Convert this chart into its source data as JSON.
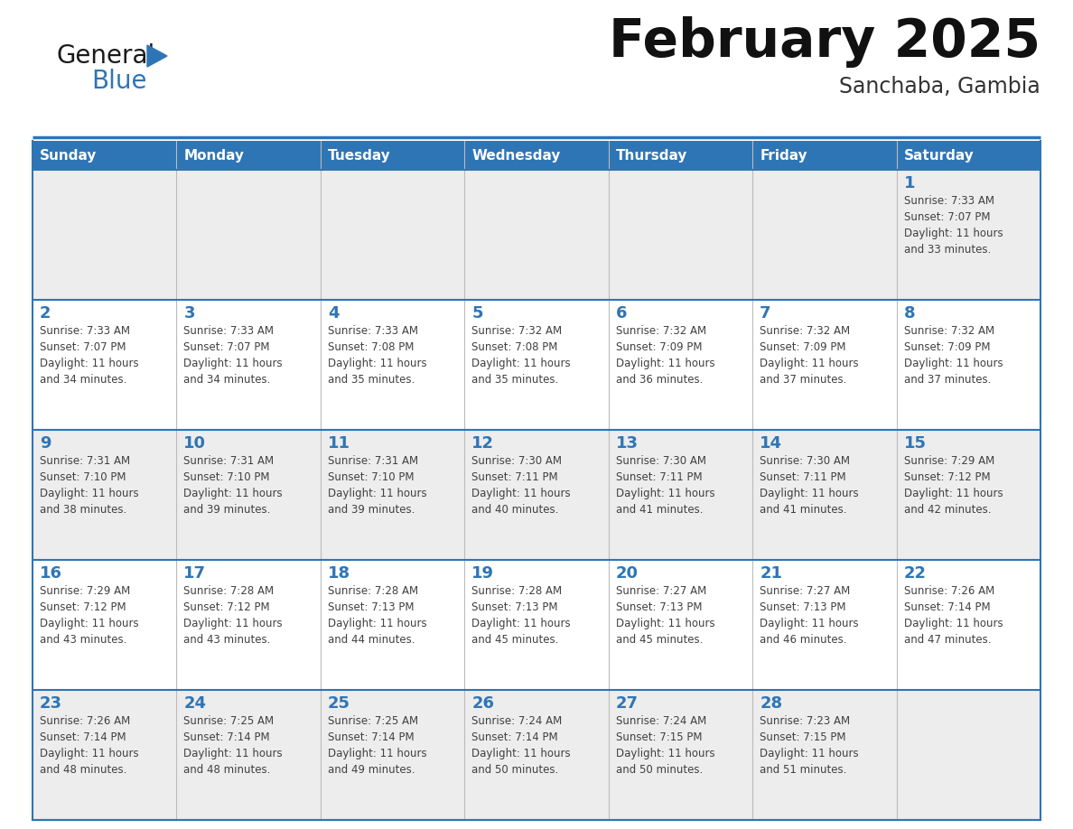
{
  "title": "February 2025",
  "subtitle": "Sanchaba, Gambia",
  "days_of_week": [
    "Sunday",
    "Monday",
    "Tuesday",
    "Wednesday",
    "Thursday",
    "Friday",
    "Saturday"
  ],
  "header_bg": "#2E75B6",
  "header_text": "#FFFFFF",
  "row_bg_even": "#EDEDED",
  "row_bg_odd": "#FFFFFF",
  "separator_color": "#2E75B6",
  "day_num_color": "#2E75B6",
  "cell_text_color": "#404040",
  "title_color": "#111111",
  "subtitle_color": "#333333",
  "logo_black": "#1a1a1a",
  "logo_blue": "#2E75B6",
  "calendar": [
    [
      null,
      null,
      null,
      null,
      null,
      null,
      {
        "day": 1,
        "sunrise": "7:33 AM",
        "sunset": "7:07 PM",
        "daylight": "11 hours and 33 minutes."
      }
    ],
    [
      {
        "day": 2,
        "sunrise": "7:33 AM",
        "sunset": "7:07 PM",
        "daylight": "11 hours and 34 minutes."
      },
      {
        "day": 3,
        "sunrise": "7:33 AM",
        "sunset": "7:07 PM",
        "daylight": "11 hours and 34 minutes."
      },
      {
        "day": 4,
        "sunrise": "7:33 AM",
        "sunset": "7:08 PM",
        "daylight": "11 hours and 35 minutes."
      },
      {
        "day": 5,
        "sunrise": "7:32 AM",
        "sunset": "7:08 PM",
        "daylight": "11 hours and 35 minutes."
      },
      {
        "day": 6,
        "sunrise": "7:32 AM",
        "sunset": "7:09 PM",
        "daylight": "11 hours and 36 minutes."
      },
      {
        "day": 7,
        "sunrise": "7:32 AM",
        "sunset": "7:09 PM",
        "daylight": "11 hours and 37 minutes."
      },
      {
        "day": 8,
        "sunrise": "7:32 AM",
        "sunset": "7:09 PM",
        "daylight": "11 hours and 37 minutes."
      }
    ],
    [
      {
        "day": 9,
        "sunrise": "7:31 AM",
        "sunset": "7:10 PM",
        "daylight": "11 hours and 38 minutes."
      },
      {
        "day": 10,
        "sunrise": "7:31 AM",
        "sunset": "7:10 PM",
        "daylight": "11 hours and 39 minutes."
      },
      {
        "day": 11,
        "sunrise": "7:31 AM",
        "sunset": "7:10 PM",
        "daylight": "11 hours and 39 minutes."
      },
      {
        "day": 12,
        "sunrise": "7:30 AM",
        "sunset": "7:11 PM",
        "daylight": "11 hours and 40 minutes."
      },
      {
        "day": 13,
        "sunrise": "7:30 AM",
        "sunset": "7:11 PM",
        "daylight": "11 hours and 41 minutes."
      },
      {
        "day": 14,
        "sunrise": "7:30 AM",
        "sunset": "7:11 PM",
        "daylight": "11 hours and 41 minutes."
      },
      {
        "day": 15,
        "sunrise": "7:29 AM",
        "sunset": "7:12 PM",
        "daylight": "11 hours and 42 minutes."
      }
    ],
    [
      {
        "day": 16,
        "sunrise": "7:29 AM",
        "sunset": "7:12 PM",
        "daylight": "11 hours and 43 minutes."
      },
      {
        "day": 17,
        "sunrise": "7:28 AM",
        "sunset": "7:12 PM",
        "daylight": "11 hours and 43 minutes."
      },
      {
        "day": 18,
        "sunrise": "7:28 AM",
        "sunset": "7:13 PM",
        "daylight": "11 hours and 44 minutes."
      },
      {
        "day": 19,
        "sunrise": "7:28 AM",
        "sunset": "7:13 PM",
        "daylight": "11 hours and 45 minutes."
      },
      {
        "day": 20,
        "sunrise": "7:27 AM",
        "sunset": "7:13 PM",
        "daylight": "11 hours and 45 minutes."
      },
      {
        "day": 21,
        "sunrise": "7:27 AM",
        "sunset": "7:13 PM",
        "daylight": "11 hours and 46 minutes."
      },
      {
        "day": 22,
        "sunrise": "7:26 AM",
        "sunset": "7:14 PM",
        "daylight": "11 hours and 47 minutes."
      }
    ],
    [
      {
        "day": 23,
        "sunrise": "7:26 AM",
        "sunset": "7:14 PM",
        "daylight": "11 hours and 48 minutes."
      },
      {
        "day": 24,
        "sunrise": "7:25 AM",
        "sunset": "7:14 PM",
        "daylight": "11 hours and 48 minutes."
      },
      {
        "day": 25,
        "sunrise": "7:25 AM",
        "sunset": "7:14 PM",
        "daylight": "11 hours and 49 minutes."
      },
      {
        "day": 26,
        "sunrise": "7:24 AM",
        "sunset": "7:14 PM",
        "daylight": "11 hours and 50 minutes."
      },
      {
        "day": 27,
        "sunrise": "7:24 AM",
        "sunset": "7:15 PM",
        "daylight": "11 hours and 50 minutes."
      },
      {
        "day": 28,
        "sunrise": "7:23 AM",
        "sunset": "7:15 PM",
        "daylight": "11 hours and 51 minutes."
      },
      null
    ]
  ]
}
